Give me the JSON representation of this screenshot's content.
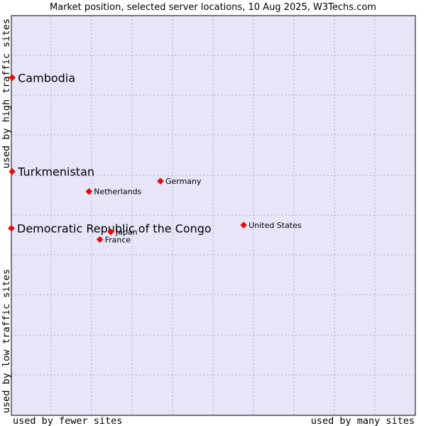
{
  "chart_data": {
    "type": "scatter",
    "title": "Market position, selected server locations, 10 Aug 2025, W3Techs.com",
    "xlabel_left": "used by fewer sites",
    "xlabel_right": "used by many sites",
    "ylabel_bottom": "used by low traffic sites",
    "ylabel_top": "used by high traffic sites",
    "xlim": [
      0,
      100
    ],
    "ylim": [
      0,
      100
    ],
    "grid": true,
    "colors": {
      "plot_background": "#e6e6f8",
      "grid": "#aaaacc",
      "border": "#000000",
      "marker": "#ff0000"
    },
    "points": [
      {
        "label": "Cambodia",
        "x": 0.2,
        "y": 84.5,
        "emphasis": true
      },
      {
        "label": "Turkmenistan",
        "x": 0.2,
        "y": 61.0,
        "emphasis": true
      },
      {
        "label": "Democratic Republic of the Congo",
        "x": 0.0,
        "y": 46.8,
        "emphasis": true
      },
      {
        "label": "Germany",
        "x": 36.9,
        "y": 58.6,
        "emphasis": false
      },
      {
        "label": "Netherlands",
        "x": 19.2,
        "y": 56.0,
        "emphasis": false
      },
      {
        "label": "United States",
        "x": 57.5,
        "y": 47.6,
        "emphasis": false
      },
      {
        "label": "Japan",
        "x": 24.6,
        "y": 45.9,
        "emphasis": false
      },
      {
        "label": "France",
        "x": 21.9,
        "y": 44.0,
        "emphasis": false
      }
    ]
  }
}
